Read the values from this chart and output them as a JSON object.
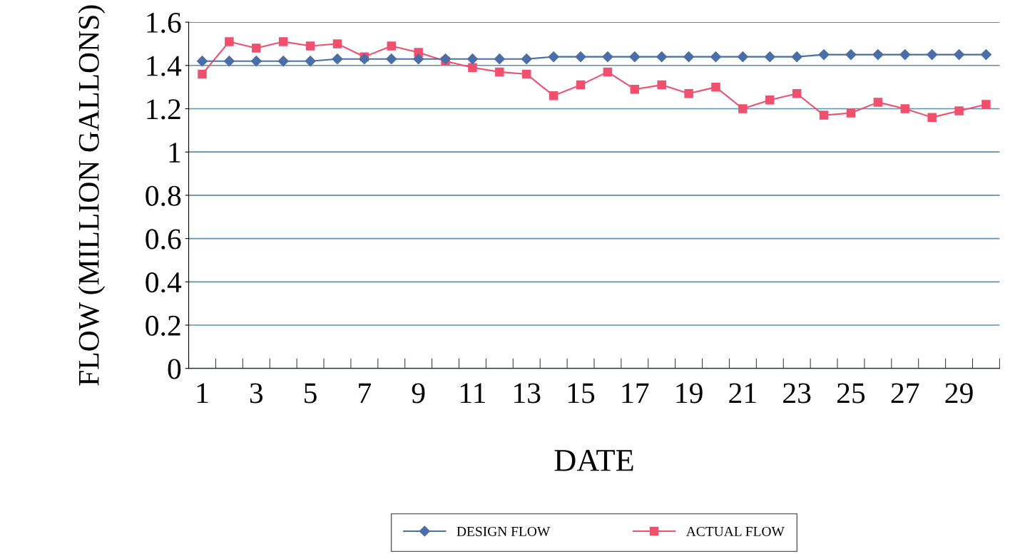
{
  "chart_data": {
    "type": "line",
    "xlabel": "DATE",
    "ylabel": "FLOW (MILLION GALLONS)",
    "categories": [
      "1",
      null,
      "3",
      null,
      "5",
      null,
      "7",
      null,
      "9",
      null,
      "11",
      null,
      "13",
      null,
      "15",
      null,
      "17",
      null,
      "19",
      null,
      "21",
      null,
      "23",
      null,
      "25",
      null,
      "27",
      null,
      "29",
      null
    ],
    "series": [
      {
        "name": "DESIGN FLOW",
        "color": "#4a6fa8",
        "marker": "diamond",
        "values": [
          1.42,
          1.42,
          1.42,
          1.42,
          1.42,
          1.43,
          1.43,
          1.43,
          1.43,
          1.43,
          1.43,
          1.43,
          1.43,
          1.44,
          1.44,
          1.44,
          1.44,
          1.44,
          1.44,
          1.44,
          1.44,
          1.44,
          1.44,
          1.45,
          1.45,
          1.45,
          1.45,
          1.45,
          1.45,
          1.45
        ]
      },
      {
        "name": "ACTUAL FLOW",
        "color": "#f0506e",
        "marker": "square",
        "values": [
          1.36,
          1.51,
          1.48,
          1.51,
          1.49,
          1.5,
          1.44,
          1.49,
          1.46,
          1.42,
          1.39,
          1.37,
          1.36,
          1.26,
          1.31,
          1.37,
          1.29,
          1.31,
          1.27,
          1.3,
          1.2,
          1.24,
          1.27,
          1.17,
          1.18,
          1.23,
          1.2,
          1.16,
          1.19,
          1.22
        ]
      }
    ],
    "ylim": [
      0,
      1.6
    ],
    "yticks": [
      0,
      0.2,
      0.4,
      0.6,
      0.8,
      {
        "value": 1,
        "label": "1"
      },
      1.2,
      1.4,
      1.6
    ],
    "grid": "y",
    "legend": "bottom"
  }
}
